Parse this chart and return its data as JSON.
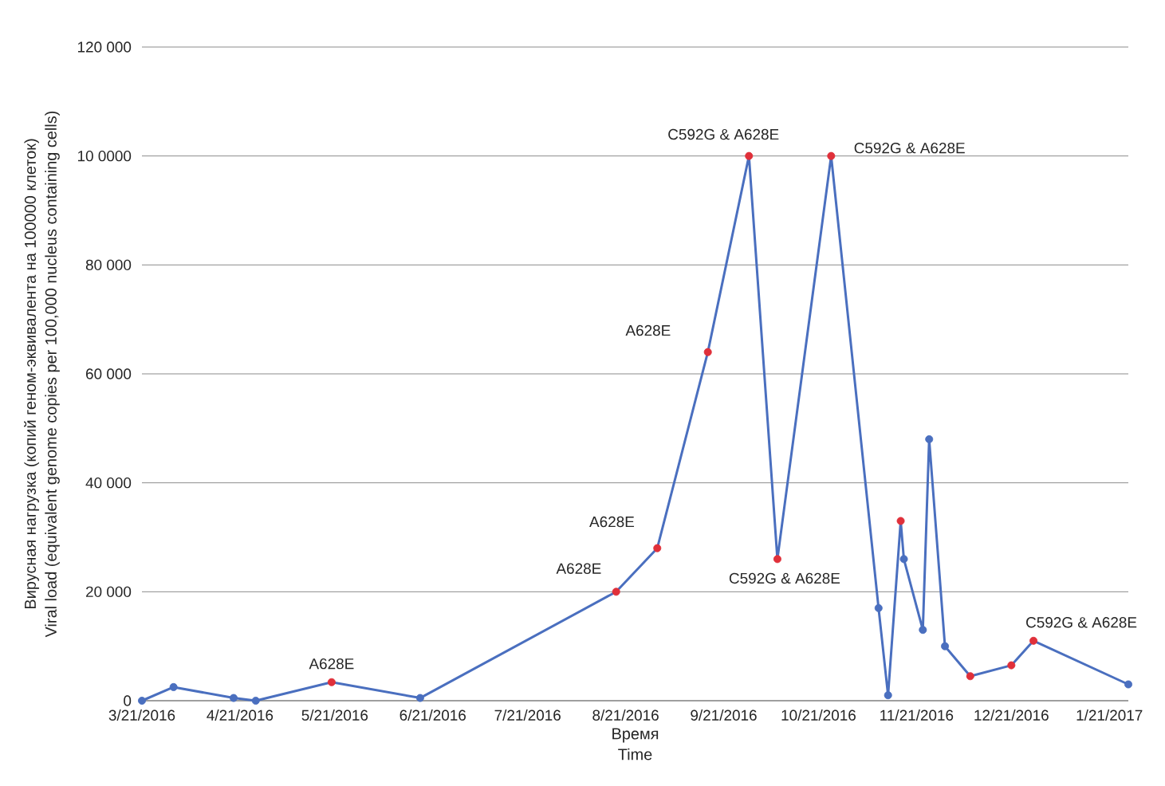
{
  "chart_data": {
    "type": "line",
    "xlabel": [
      "Время",
      "Time"
    ],
    "ylabel": [
      "Вирусная нагрузка (копий геном-эквивалента на 100000 клеток)",
      "Viral load (equivalent genome copies per 100,000 nucleus containing cells)"
    ],
    "x": [
      "2016-03-21",
      "2016-03-31",
      "2016-04-19",
      "2016-04-26",
      "2016-05-20",
      "2016-06-17",
      "2016-08-18",
      "2016-08-31",
      "2016-09-16",
      "2016-09-29",
      "2016-10-08",
      "2016-10-25",
      "2016-11-09",
      "2016-11-12",
      "2016-11-16",
      "2016-11-17",
      "2016-11-23",
      "2016-11-25",
      "2016-11-30",
      "2016-12-08",
      "2016-12-21",
      "2016-12-28",
      "2017-01-27"
    ],
    "series": [
      {
        "color": "#4a6fbf",
        "values": [
          0,
          2500,
          500,
          0,
          3400,
          500,
          20000,
          28000,
          64000,
          100000,
          26000,
          100000,
          17000,
          1000,
          33000,
          26000,
          13000,
          48000,
          10000,
          4500,
          6500,
          11000,
          3000
        ],
        "colors": [
          "#4a6fbf",
          "#4a6fbf",
          "#4a6fbf",
          "#4a6fbf",
          "#e0303a",
          "#4a6fbf",
          "#e0303a",
          "#e0303a",
          "#e0303a",
          "#e0303a",
          "#e0303a",
          "#e0303a",
          "#4a6fbf",
          "#4a6fbf",
          "#e0303a",
          "#4a6fbf",
          "#4a6fbf",
          "#4a6fbf",
          "#4a6fbf",
          "#e0303a",
          "#e0303a",
          "#e0303a",
          "#4a6fbf"
        ]
      }
    ],
    "xlim": [
      "2016-03-21",
      "2017-01-27"
    ],
    "xticks": [
      {
        "value": "2016-03-21",
        "label": "3/21/2016"
      },
      {
        "value": "2016-04-21",
        "label": "4/21/2016"
      },
      {
        "value": "2016-05-21",
        "label": "5/21/2016"
      },
      {
        "value": "2016-06-21",
        "label": "6/21/2016"
      },
      {
        "value": "2016-07-21",
        "label": "7/21/2016"
      },
      {
        "value": "2016-08-21",
        "label": "8/21/2016"
      },
      {
        "value": "2016-09-21",
        "label": "9/21/2016"
      },
      {
        "value": "2016-10-21",
        "label": "10/21/2016"
      },
      {
        "value": "2016-11-21",
        "label": "11/21/2016"
      },
      {
        "value": "2016-12-21",
        "label": "12/21/2016"
      },
      {
        "value": "2017-01-21",
        "label": "1/21/2017"
      }
    ],
    "ylim": [
      0,
      120000
    ],
    "yticks": [
      0,
      {
        "value": 20000,
        "label": "20 000"
      },
      {
        "value": 40000,
        "label": "40 000"
      },
      {
        "value": 60000,
        "label": "60 000"
      },
      {
        "value": 80000,
        "label": "80 000"
      },
      {
        "value": 100000,
        "label": "10 0000"
      },
      {
        "value": 120000,
        "label": "120 000"
      }
    ],
    "grid": "y",
    "marker": "circle",
    "line_style": "solid",
    "annotations": [
      {
        "text": "A628E",
        "x": "2016-05-20",
        "y": 3400
      },
      {
        "text": "A628E",
        "x": "2016-08-18",
        "y": 20000
      },
      {
        "text": "A628E",
        "x": "2016-08-31",
        "y": 28000
      },
      {
        "text": "A628E",
        "x": "2016-09-16",
        "y": 64000
      },
      {
        "text": "C592G & A628E",
        "x": "2016-09-29",
        "y": 100000
      },
      {
        "text": "C592G & A628E",
        "x": "2016-10-08",
        "y": 26000
      },
      {
        "text": "C592G & A628E",
        "x": "2016-10-25",
        "y": 100000
      },
      {
        "text": "C592G & A628E",
        "x": "2016-12-28",
        "y": 11000
      }
    ]
  }
}
